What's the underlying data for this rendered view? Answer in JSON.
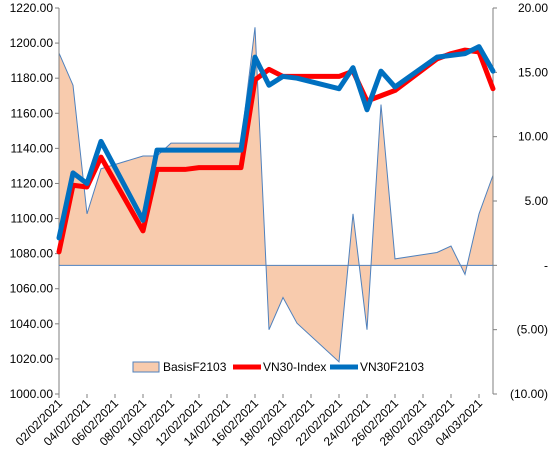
{
  "chart_data": {
    "type": "line",
    "title": "",
    "xlabel": "",
    "ylabel": "",
    "y2label": "",
    "grid": false,
    "legend": "bottom-center",
    "categories": [
      "02/02/2021",
      "03/02/2021",
      "04/02/2021",
      "05/02/2021",
      "08/02/2021",
      "09/02/2021",
      "10/02/2021",
      "11/02/2021",
      "12/02/2021",
      "15/02/2021",
      "16/02/2021",
      "17/02/2021",
      "18/02/2021",
      "19/02/2021",
      "22/02/2021",
      "23/02/2021",
      "24/02/2021",
      "25/02/2021",
      "26/02/2021",
      "01/03/2021",
      "02/03/2021",
      "03/03/2021",
      "04/03/2021",
      "05/03/2021"
    ],
    "dates": [
      2,
      3,
      4,
      5,
      8,
      9,
      10,
      11,
      12,
      15,
      16,
      17,
      18,
      19,
      22,
      23,
      24,
      25,
      26,
      29,
      30,
      31,
      32,
      33
    ],
    "x_tick_labels": [
      "02/02/2021",
      "04/02/2021",
      "06/02/2021",
      "08/02/2021",
      "10/02/2021",
      "12/02/2021",
      "14/02/2021",
      "16/02/2021",
      "18/02/2021",
      "20/02/2021",
      "22/02/2021",
      "24/02/2021",
      "26/02/2021",
      "28/02/2021",
      "02/03/2021",
      "04/03/2021"
    ],
    "x_tick_dates": [
      2,
      4,
      6,
      8,
      10,
      12,
      14,
      16,
      18,
      20,
      22,
      24,
      26,
      28,
      30,
      32
    ],
    "ylim": [
      1000,
      1220
    ],
    "y_ticks": [
      "1000.00",
      "1020.00",
      "1040.00",
      "1060.00",
      "1080.00",
      "1100.00",
      "1120.00",
      "1140.00",
      "1160.00",
      "1180.00",
      "1200.00",
      "1220.00"
    ],
    "y_tick_values": [
      1000,
      1020,
      1040,
      1060,
      1080,
      1100,
      1120,
      1140,
      1160,
      1180,
      1200,
      1220
    ],
    "y2lim": [
      -10,
      20
    ],
    "y2_ticks": [
      "(10.00)",
      "(5.00)",
      "-",
      "5.00",
      "10.00",
      "15.00",
      "20.00"
    ],
    "y2_tick_values": [
      -10,
      -5,
      0,
      5,
      10,
      15,
      20
    ],
    "series": [
      {
        "name": "BasisF2103",
        "type": "area",
        "axis": "right",
        "color": "#f8cbad",
        "line_color": "#4f81bd",
        "values": [
          16.5,
          14,
          4,
          7.5,
          8.5,
          8.5,
          9.5,
          9.5,
          9.5,
          9.5,
          18.5,
          -5,
          -2.5,
          -4.5,
          -7.5,
          4,
          -5,
          12.5,
          0.5,
          1,
          1.5,
          -0.7,
          4,
          7
        ]
      },
      {
        "name": "VN30-Index",
        "type": "line",
        "axis": "left",
        "color": "#ff0000",
        "values": [
          1081,
          1119,
          1118,
          1135,
          1093,
          1128,
          1128,
          1128,
          1129,
          1129,
          1179,
          1185,
          1181,
          1181,
          1181,
          1184,
          1167,
          1170,
          1173,
          1191,
          1194,
          1196,
          1195,
          1174
        ]
      },
      {
        "name": "VN30F2103",
        "type": "line",
        "axis": "left",
        "color": "#0070c0",
        "values": [
          1089,
          1126,
          1120,
          1144,
          1099,
          1139,
          1139,
          1139,
          1139,
          1139,
          1192,
          1176,
          1181,
          1180,
          1174,
          1186,
          1162,
          1184,
          1175,
          1192,
          1193,
          1194,
          1198,
          1184
        ]
      }
    ]
  }
}
